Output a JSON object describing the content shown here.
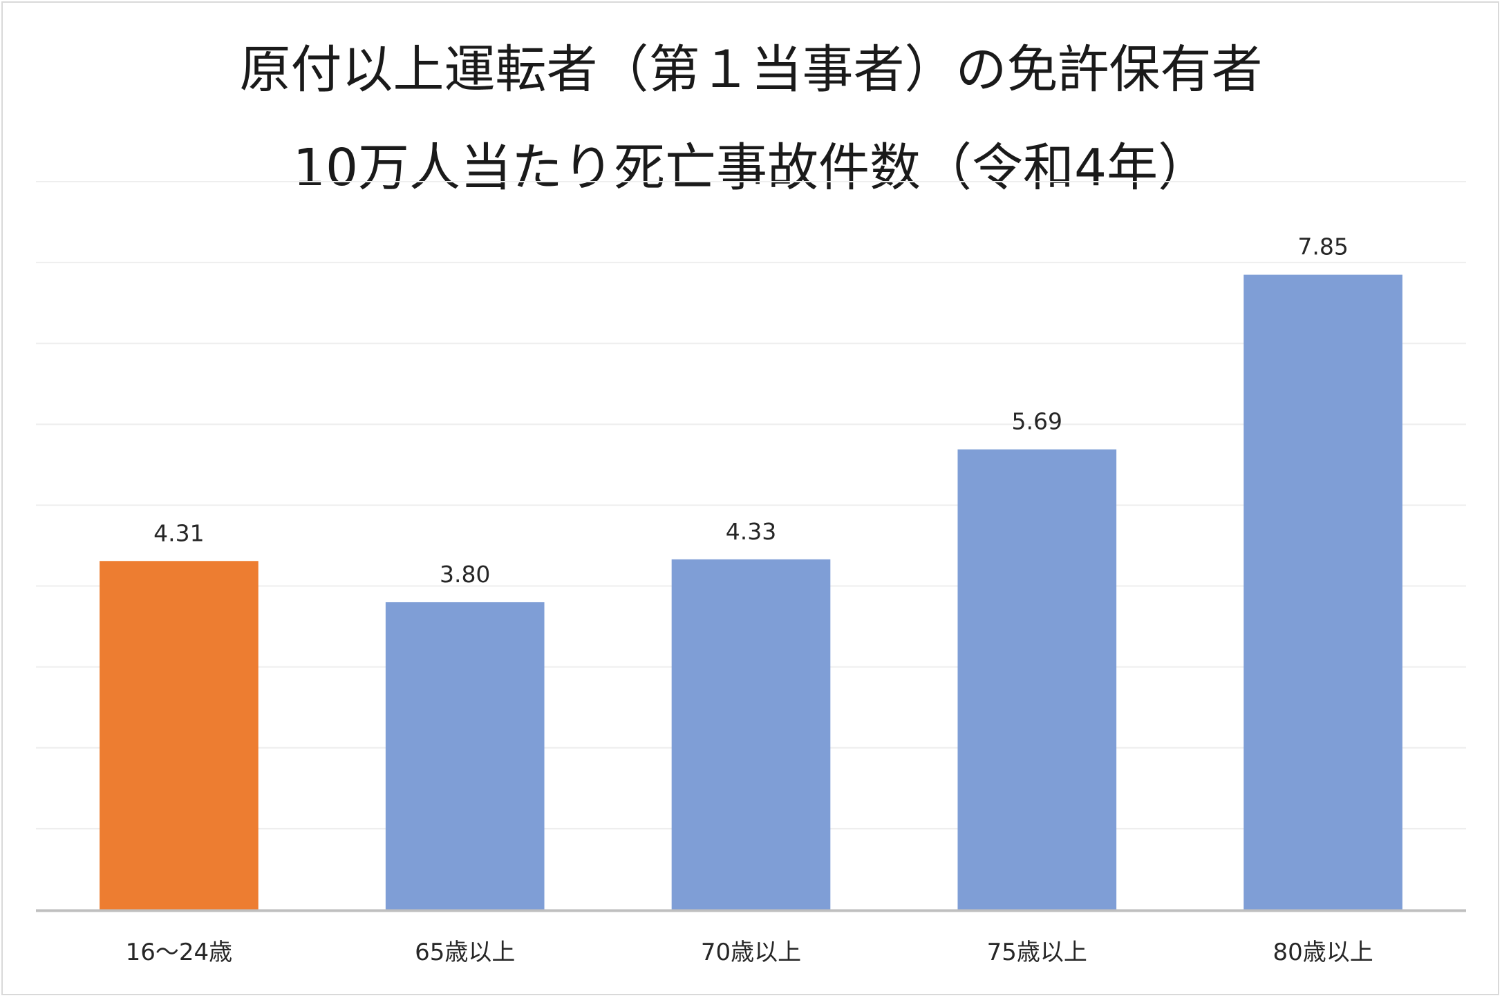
{
  "chart_data": {
    "type": "bar",
    "title": [
      "原付以上運転者（第１当事者）の免許保有者",
      "10万人当たり死亡事故件数（令和4年）"
    ],
    "categories": [
      "16～24歳",
      "65歳以上",
      "70歳以上",
      "75歳以上",
      "80歳以上"
    ],
    "series": [
      {
        "values": [
          4.31,
          3.8,
          4.33,
          5.69,
          7.85
        ],
        "labels": [
          "4.31",
          "3.80",
          "4.33",
          "5.69",
          "7.85"
        ],
        "colors": [
          "#ED7D31",
          "#7F9ED6",
          "#7F9ED6",
          "#7F9ED6",
          "#7F9ED6"
        ]
      }
    ],
    "ylim": [
      0,
      9
    ],
    "grid": true,
    "gridline_step": 1,
    "legend": "none",
    "axis_color": "#bfbfbf",
    "grid_color": "#eeeeee"
  }
}
